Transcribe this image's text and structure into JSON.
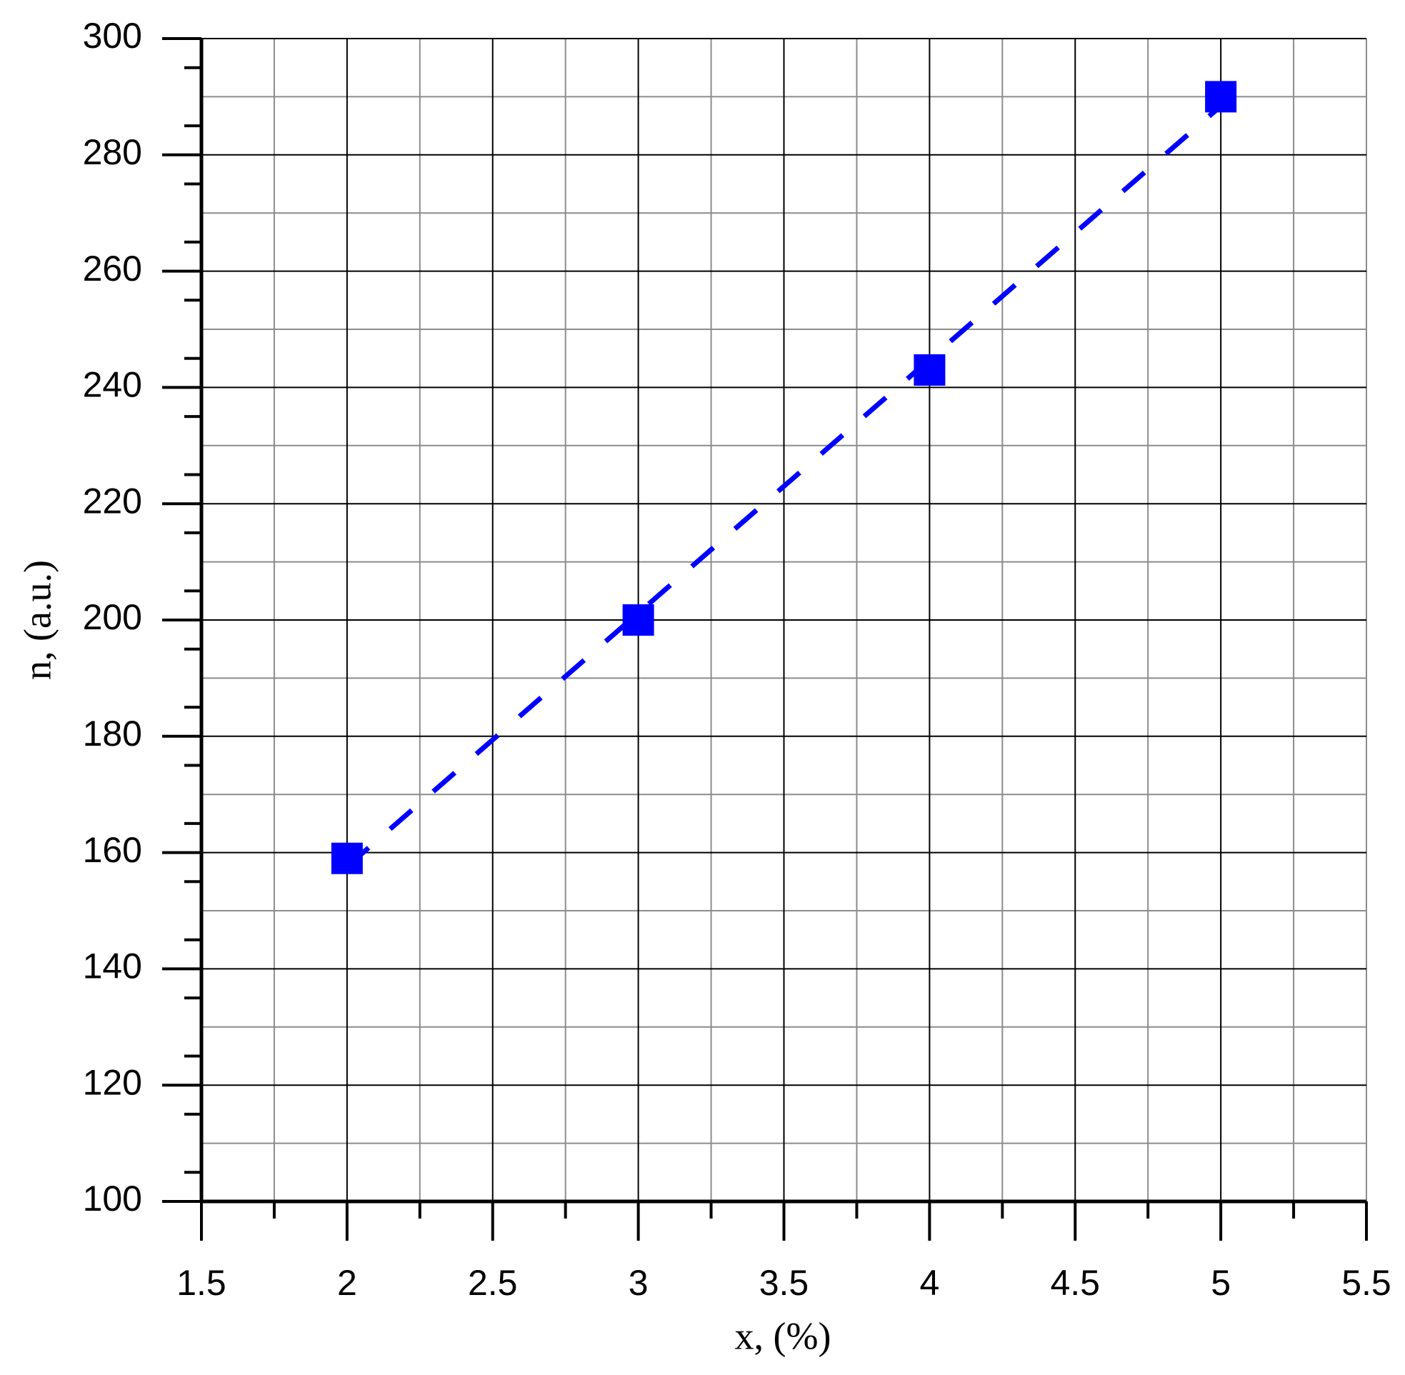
{
  "chart_data": {
    "type": "scatter",
    "x_label": "x, (%)",
    "y_label": "n, (a.u.)",
    "series": [
      {
        "name": "n",
        "color": "#0000ff",
        "x": [
          2,
          3,
          4,
          5
        ],
        "values": [
          159,
          200,
          243,
          290
        ]
      }
    ],
    "fit_line": {
      "color": "#0000ff",
      "x": [
        2,
        5
      ],
      "values": [
        157.6,
        288.4
      ]
    },
    "xlim": [
      1.5,
      5.5
    ],
    "ylim": [
      100,
      300
    ],
    "xticks": [
      1.5,
      2,
      2.5,
      3,
      3.5,
      4,
      4.5,
      5,
      5.5
    ],
    "yticks": [
      100,
      120,
      140,
      160,
      180,
      200,
      220,
      240,
      260,
      280,
      300
    ],
    "x_minor_ticks": [
      1.75,
      2.25,
      2.75,
      3.25,
      3.75,
      4.25,
      4.75,
      5.25
    ],
    "y_minor_grid": [
      110,
      130,
      150,
      170,
      190,
      210,
      230,
      250,
      270,
      290
    ],
    "y_minor_ticks": [
      105,
      115,
      125,
      135,
      145,
      155,
      165,
      175,
      185,
      195,
      205,
      215,
      225,
      235,
      245,
      255,
      265,
      275,
      285,
      295
    ],
    "grid": true
  }
}
